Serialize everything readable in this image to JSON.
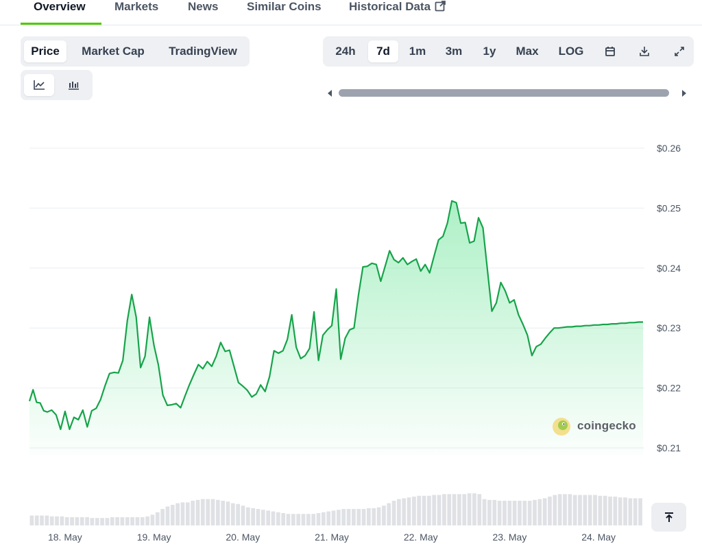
{
  "nav_tabs": [
    {
      "label": "Overview",
      "active": true
    },
    {
      "label": "Markets",
      "active": false
    },
    {
      "label": "News",
      "active": false
    },
    {
      "label": "Similar Coins",
      "active": false
    },
    {
      "label": "Historical Data",
      "active": false,
      "external": true
    }
  ],
  "chart_type_tabs": [
    {
      "label": "Price",
      "active": true
    },
    {
      "label": "Market Cap",
      "active": false
    },
    {
      "label": "TradingView",
      "active": false
    }
  ],
  "chart_style_buttons": [
    {
      "icon": "line-chart-icon",
      "active": true
    },
    {
      "icon": "candlestick-chart-icon",
      "active": false
    }
  ],
  "range_buttons": [
    {
      "label": "24h",
      "active": false
    },
    {
      "label": "7d",
      "active": true
    },
    {
      "label": "1m",
      "active": false
    },
    {
      "label": "3m",
      "active": false
    },
    {
      "label": "1y",
      "active": false
    },
    {
      "label": "Max",
      "active": false
    },
    {
      "label": "LOG",
      "active": false
    }
  ],
  "range_icon_buttons": [
    "calendar-icon",
    "download-icon",
    "expand-icon"
  ],
  "watermark": "coingecko",
  "colors": {
    "line": "#16a34a",
    "area": "#4ade80",
    "volume": "#d1d5db",
    "active_tab": "#4bcc00"
  },
  "chart_data": {
    "type": "line",
    "title": "",
    "xlabel": "",
    "ylabel": "",
    "x_tick_labels": [
      "18. May",
      "19. May",
      "20. May",
      "21. May",
      "22. May",
      "23. May",
      "24. May"
    ],
    "x_range": [
      17.6,
      24.5
    ],
    "y_ticks": [
      0.21,
      0.22,
      0.23,
      0.24,
      0.25,
      0.26
    ],
    "y_tick_labels": [
      "$0.21",
      "$0.22",
      "$0.23",
      "$0.24",
      "$0.25",
      "$0.26"
    ],
    "ylim": [
      0.21,
      0.26
    ],
    "grid": true,
    "series": [
      {
        "name": "",
        "x": [
          17.6,
          17.64,
          17.68,
          17.72,
          17.76,
          17.8,
          17.85,
          17.9,
          17.95,
          18.0,
          18.05,
          18.1,
          18.15,
          18.2,
          18.25,
          18.3,
          18.35,
          18.4,
          18.45,
          18.5,
          18.55,
          18.6,
          18.65,
          18.7,
          18.75,
          18.8,
          18.85,
          18.9,
          18.95,
          19.0,
          19.05,
          19.1,
          19.15,
          19.2,
          19.25,
          19.3,
          19.35,
          19.4,
          19.45,
          19.5,
          19.55,
          19.6,
          19.65,
          19.7,
          19.75,
          19.8,
          19.85,
          19.9,
          19.95,
          20.0,
          20.05,
          20.1,
          20.15,
          20.2,
          20.25,
          20.3,
          20.35,
          20.4,
          20.45,
          20.5,
          20.55,
          20.6,
          20.65,
          20.7,
          20.75,
          20.8,
          20.85,
          20.9,
          20.95,
          21.0,
          21.05,
          21.1,
          21.15,
          21.2,
          21.25,
          21.3,
          21.35,
          21.4,
          21.45,
          21.5,
          21.55,
          21.6,
          21.65,
          21.7,
          21.75,
          21.8,
          21.85,
          21.9,
          21.95,
          22.0,
          22.05,
          22.1,
          22.15,
          22.2,
          22.25,
          22.3,
          22.35,
          22.4,
          22.45,
          22.5,
          22.55,
          22.6,
          22.65,
          22.7,
          22.75,
          22.8,
          22.85,
          22.9,
          22.95,
          23.0,
          23.05,
          23.1,
          23.15,
          23.2,
          23.25,
          23.3,
          23.35,
          23.4,
          23.45,
          23.5,
          23.55,
          23.6,
          23.65,
          23.7,
          23.75,
          23.8,
          23.85,
          23.9,
          23.95,
          24.0,
          24.05,
          24.1,
          24.15,
          24.2,
          24.25,
          24.3,
          24.35,
          24.4,
          24.45,
          24.5
        ],
        "values": [
          0.2178,
          0.2197,
          0.2176,
          0.2175,
          0.2162,
          0.216,
          0.2163,
          0.2155,
          0.2131,
          0.2161,
          0.2131,
          0.2151,
          0.2147,
          0.2163,
          0.2135,
          0.2162,
          0.2166,
          0.2181,
          0.2204,
          0.2224,
          0.2226,
          0.2225,
          0.2246,
          0.2312,
          0.2356,
          0.2318,
          0.2234,
          0.2253,
          0.2318,
          0.2271,
          0.2238,
          0.2188,
          0.2171,
          0.2172,
          0.2174,
          0.2167,
          0.2187,
          0.2206,
          0.2223,
          0.2239,
          0.2232,
          0.2244,
          0.2236,
          0.2253,
          0.2276,
          0.2261,
          0.2263,
          0.2236,
          0.2209,
          0.2203,
          0.2196,
          0.2185,
          0.219,
          0.2205,
          0.2194,
          0.2219,
          0.2262,
          0.2258,
          0.2262,
          0.2281,
          0.2322,
          0.2268,
          0.2249,
          0.2254,
          0.2266,
          0.2327,
          0.2246,
          0.2288,
          0.2297,
          0.2304,
          0.2365,
          0.2248,
          0.2283,
          0.2297,
          0.23,
          0.2355,
          0.2402,
          0.2403,
          0.2408,
          0.2406,
          0.2378,
          0.2403,
          0.2429,
          0.2414,
          0.2409,
          0.2417,
          0.2406,
          0.2411,
          0.2415,
          0.2395,
          0.2406,
          0.2392,
          0.242,
          0.2447,
          0.2453,
          0.2475,
          0.2512,
          0.2509,
          0.2475,
          0.2476,
          0.2442,
          0.2445,
          0.2484,
          0.2467,
          0.2397,
          0.2328,
          0.2342,
          0.2376,
          0.2362,
          0.2342,
          0.2347,
          0.2322,
          0.2306,
          0.2288,
          0.2254,
          0.2269,
          0.2273,
          0.2283,
          0.2292,
          0.23,
          0.23,
          0.2301,
          0.2302,
          0.2302,
          0.2303,
          0.2303,
          0.2304,
          0.2304,
          0.2305,
          0.2305,
          0.2306,
          0.2306,
          0.2307,
          0.2307,
          0.2308,
          0.2308,
          0.2309,
          0.2309,
          0.231,
          0.231
        ],
        "visible_until": 24.5
      }
    ],
    "volume": [
      0.12,
      0.12,
      0.12,
      0.12,
      0.11,
      0.11,
      0.11,
      0.1,
      0.1,
      0.1,
      0.1,
      0.1,
      0.09,
      0.09,
      0.09,
      0.09,
      0.1,
      0.1,
      0.1,
      0.1,
      0.1,
      0.1,
      0.1,
      0.11,
      0.13,
      0.16,
      0.2,
      0.23,
      0.25,
      0.27,
      0.28,
      0.28,
      0.3,
      0.31,
      0.32,
      0.32,
      0.32,
      0.31,
      0.3,
      0.29,
      0.27,
      0.26,
      0.24,
      0.22,
      0.21,
      0.2,
      0.19,
      0.18,
      0.17,
      0.16,
      0.15,
      0.14,
      0.14,
      0.14,
      0.14,
      0.14,
      0.14,
      0.15,
      0.16,
      0.17,
      0.18,
      0.19,
      0.2,
      0.2,
      0.2,
      0.2,
      0.2,
      0.21,
      0.21,
      0.22,
      0.24,
      0.27,
      0.3,
      0.32,
      0.33,
      0.34,
      0.35,
      0.36,
      0.36,
      0.36,
      0.37,
      0.37,
      0.38,
      0.38,
      0.38,
      0.38,
      0.38,
      0.39,
      0.39,
      0.38,
      0.32,
      0.31,
      0.31,
      0.3,
      0.3,
      0.3,
      0.3,
      0.3,
      0.3,
      0.3,
      0.31,
      0.32,
      0.33,
      0.35,
      0.37,
      0.38,
      0.38,
      0.38,
      0.37,
      0.37,
      0.37,
      0.37,
      0.37,
      0.36,
      0.36,
      0.35,
      0.35,
      0.34,
      0.34,
      0.33,
      0.33,
      0.33
    ]
  }
}
